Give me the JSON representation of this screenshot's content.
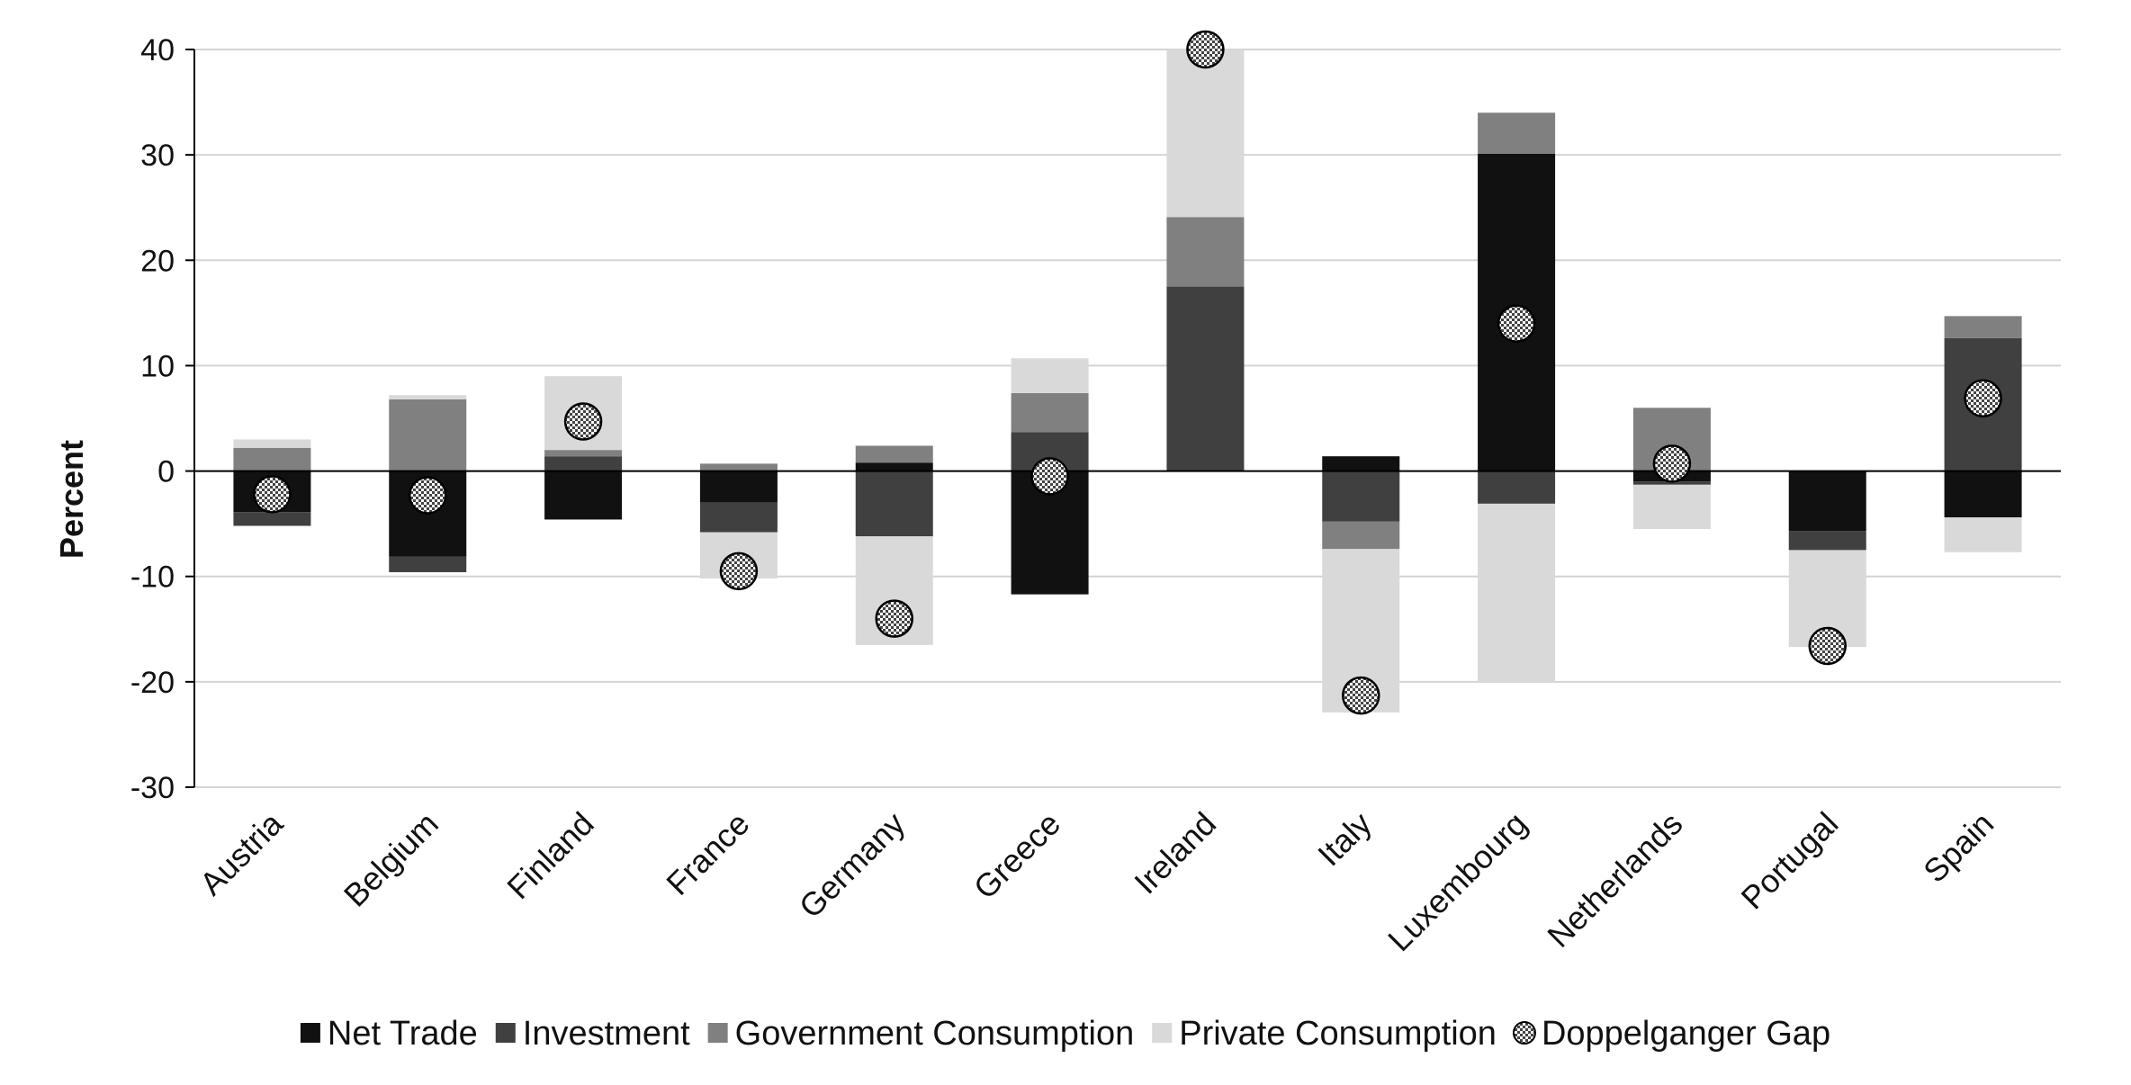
{
  "chart_data": {
    "type": "bar",
    "stacked": true,
    "ylabel": "Percent",
    "xlabel": "",
    "title": "",
    "ylim": [
      -30,
      40
    ],
    "yticks": [
      40,
      30,
      20,
      10,
      0,
      -10,
      -20,
      -30
    ],
    "grid": true,
    "legend_position": "bottom",
    "categories": [
      "Austria",
      "Belgium",
      "Finland",
      "France",
      "Germany",
      "Greece",
      "Ireland",
      "Italy",
      "Luxembourg",
      "Netherlands",
      "Portugal",
      "Spain"
    ],
    "series": [
      {
        "name": "Net Trade",
        "color": "#111111",
        "values": [
          -3.9,
          -8.1,
          -4.6,
          -3.0,
          0.8,
          -11.7,
          0.0,
          1.4,
          30.1,
          -1.0,
          -5.7,
          -4.4
        ]
      },
      {
        "name": "Investment",
        "color": "#404040",
        "values": [
          -1.3,
          -1.5,
          1.4,
          -2.8,
          -6.2,
          3.7,
          17.5,
          -4.8,
          -3.1,
          -0.3,
          -1.8,
          12.6
        ]
      },
      {
        "name": "Government Consumption",
        "color": "#808080",
        "values": [
          2.2,
          6.8,
          0.6,
          0.7,
          1.6,
          3.7,
          6.6,
          -2.6,
          3.9,
          6.0,
          0.0,
          2.1
        ]
      },
      {
        "name": "Private Consumption",
        "color": "#d9d9d9",
        "values": [
          0.8,
          0.4,
          7.0,
          -4.4,
          -10.3,
          3.3,
          15.9,
          -15.5,
          -17.0,
          -4.2,
          -9.2,
          -3.3
        ]
      }
    ],
    "markers": {
      "name": "Doppelganger Gap",
      "values": [
        -2.2,
        -2.3,
        4.7,
        -9.5,
        -14.0,
        -0.5,
        40.0,
        -21.3,
        14.0,
        0.7,
        -16.6,
        6.9
      ]
    }
  }
}
